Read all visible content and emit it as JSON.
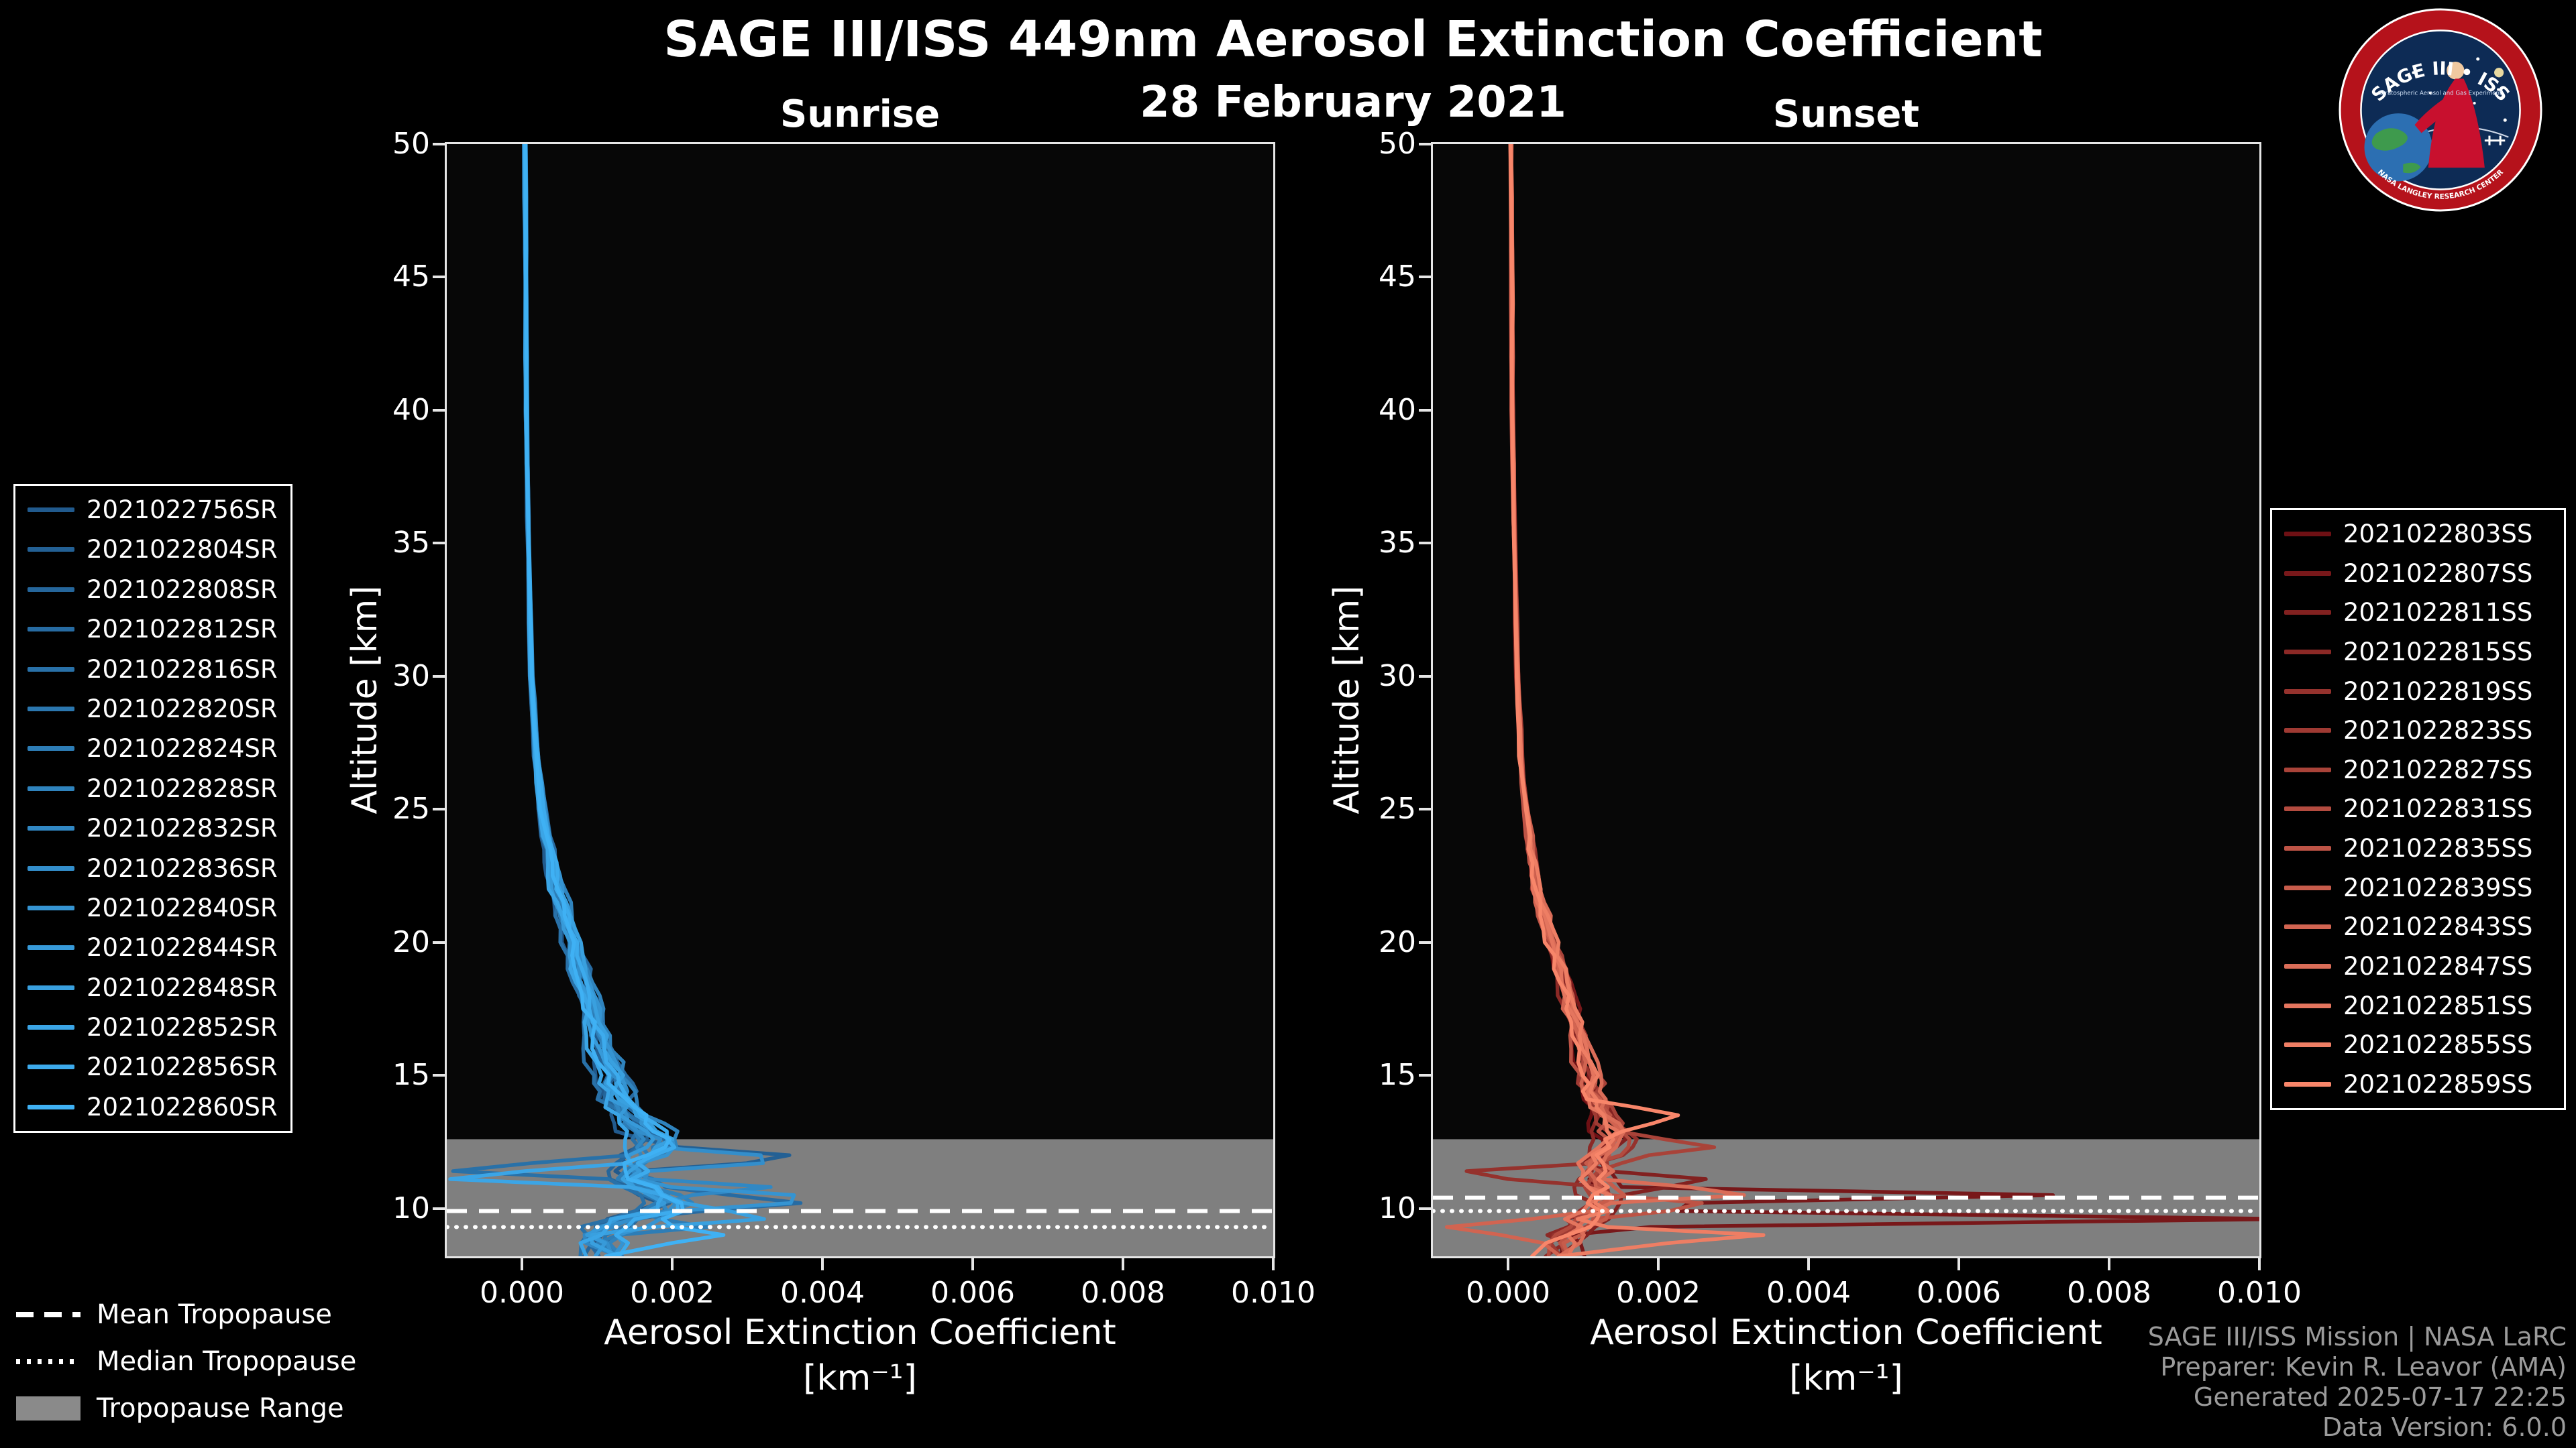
{
  "page": {
    "title": "SAGE III/ISS 449nm Aerosol Extinction Coefficient",
    "date": "28 February 2021",
    "background": "#000000",
    "text_color": "#ffffff"
  },
  "logo": {
    "title": "SAGE III • ISS",
    "subtitle": "Stratospheric Aerosol and Gas Experiment",
    "ring_text": "NASA LANGLEY RESEARCH CENTER",
    "ring_color": "#b5121b",
    "disc_color": "#0d2b55"
  },
  "axes": {
    "ylabel": "Altitude [km]",
    "xlabel_line1": "Aerosol Extinction Coefficient",
    "xlabel_line2": "[km⁻¹]",
    "x_tick_labels": [
      "0.000",
      "0.002",
      "0.004",
      "0.006",
      "0.008",
      "0.010"
    ],
    "x_tick_values": [
      0,
      0.002,
      0.004,
      0.006,
      0.008,
      0.01
    ],
    "y_tick_values": [
      10,
      15,
      20,
      25,
      30,
      35,
      40,
      45,
      50
    ],
    "xlim": [
      -0.001,
      0.01
    ],
    "ylim": [
      8.2,
      50
    ]
  },
  "tropopause_legend": [
    {
      "label": "Mean Tropopause",
      "style": "dashed"
    },
    {
      "label": "Median Tropopause",
      "style": "dotted"
    },
    {
      "label": "Tropopause Range",
      "style": "patch",
      "color": "#8a8a8a"
    }
  ],
  "credits": [
    "SAGE III/ISS Mission | NASA LaRC",
    "Preparer: Kevin R. Leavor (AMA)",
    "Generated 2025-07-17 22:25",
    "Data Version: 6.0.0"
  ],
  "chart_data": [
    {
      "type": "line",
      "panel": "sunrise",
      "title": "Sunrise",
      "xlabel": "Aerosol Extinction Coefficient [km⁻¹]",
      "ylabel": "Altitude [km]",
      "xlim": [
        -0.001,
        0.01
      ],
      "ylim": [
        8.2,
        50
      ],
      "x_ticks": [
        0,
        0.002,
        0.004,
        0.006,
        0.008,
        0.01
      ],
      "y_ticks": [
        10,
        15,
        20,
        25,
        30,
        35,
        40,
        45,
        50
      ],
      "legend_position": "left",
      "color_start": "#215a8d",
      "color_end": "#3fb1f4",
      "tropopause": {
        "mean_km": 9.9,
        "median_km": 9.3,
        "range_km": [
          8.2,
          12.6
        ]
      },
      "base_profile": [
        [
          50,
          4e-05
        ],
        [
          45,
          5e-05
        ],
        [
          40,
          6e-05
        ],
        [
          35,
          9e-05
        ],
        [
          30,
          0.00013
        ],
        [
          27,
          0.0002
        ],
        [
          25,
          0.00028
        ],
        [
          22,
          0.00048
        ],
        [
          20,
          0.0007
        ],
        [
          18,
          0.0009
        ],
        [
          16,
          0.0011
        ],
        [
          15,
          0.00125
        ],
        [
          14,
          0.0014
        ],
        [
          13,
          0.0017
        ],
        [
          12.5,
          0.0019
        ],
        [
          12,
          0.0017
        ],
        [
          11.5,
          0.0015
        ],
        [
          11,
          0.0016
        ],
        [
          10.5,
          0.0019
        ],
        [
          10,
          0.002
        ],
        [
          9.5,
          0.0014
        ],
        [
          9,
          0.001
        ],
        [
          8.2,
          0.0012
        ]
      ],
      "noise": {
        "hi": 2e-05,
        "mid": 0.00018,
        "low": 0.0005
      },
      "series": [
        {
          "name": "2021022756SR",
          "seed": 101,
          "scale": 0.85,
          "spikes": []
        },
        {
          "name": "2021022804SR",
          "seed": 102,
          "scale": 0.95,
          "spikes": [
            [
              11.9,
              0.0022,
              0.3
            ]
          ]
        },
        {
          "name": "2021022808SR",
          "seed": 103,
          "scale": 0.9,
          "spikes": []
        },
        {
          "name": "2021022812SR",
          "seed": 104,
          "scale": 1.05,
          "spikes": [
            [
              10.2,
              0.0014,
              0.3
            ]
          ]
        },
        {
          "name": "2021022816SR",
          "seed": 105,
          "scale": 0.8,
          "spikes": [
            [
              11.5,
              -0.0024,
              0.25
            ]
          ]
        },
        {
          "name": "2021022820SR",
          "seed": 106,
          "scale": 1.0,
          "spikes": []
        },
        {
          "name": "2021022824SR",
          "seed": 107,
          "scale": 0.9,
          "spikes": [
            [
              9.3,
              0.0012,
              0.3
            ]
          ]
        },
        {
          "name": "2021022828SR",
          "seed": 108,
          "scale": 1.1,
          "spikes": []
        },
        {
          "name": "2021022832SR",
          "seed": 109,
          "scale": 0.95,
          "spikes": [
            [
              10.8,
              0.0016,
              0.25
            ]
          ]
        },
        {
          "name": "2021022836SR",
          "seed": 110,
          "scale": 1.0,
          "spikes": [
            [
              11.85,
              0.0024,
              0.25
            ]
          ]
        },
        {
          "name": "2021022840SR",
          "seed": 111,
          "scale": 1.05,
          "spikes": [
            [
              10.35,
              0.0027,
              0.22
            ]
          ]
        },
        {
          "name": "2021022844SR",
          "seed": 112,
          "scale": 0.9,
          "spikes": []
        },
        {
          "name": "2021022848SR",
          "seed": 113,
          "scale": 1.0,
          "spikes": [
            [
              9.6,
              0.0018,
              0.3
            ]
          ]
        },
        {
          "name": "2021022852SR",
          "seed": 114,
          "scale": 0.85,
          "spikes": [
            [
              11.2,
              -0.0026,
              0.22
            ]
          ]
        },
        {
          "name": "2021022856SR",
          "seed": 115,
          "scale": 1.0,
          "spikes": []
        },
        {
          "name": "2021022860SR",
          "seed": 116,
          "scale": 0.95,
          "spikes": [
            [
              9.0,
              0.0014,
              0.35
            ]
          ]
        }
      ]
    },
    {
      "type": "line",
      "panel": "sunset",
      "title": "Sunset",
      "xlabel": "Aerosol Extinction Coefficient [km⁻¹]",
      "ylabel": "Altitude [km]",
      "xlim": [
        -0.001,
        0.01
      ],
      "ylim": [
        8.2,
        50
      ],
      "x_ticks": [
        0,
        0.002,
        0.004,
        0.006,
        0.008,
        0.01
      ],
      "y_ticks": [
        10,
        15,
        20,
        25,
        30,
        35,
        40,
        45,
        50
      ],
      "legend_position": "right",
      "color_start": "#6e1014",
      "color_end": "#f8866a",
      "tropopause": {
        "mean_km": 10.4,
        "median_km": 9.9,
        "range_km": [
          8.2,
          12.6
        ]
      },
      "base_profile": [
        [
          50,
          4e-05
        ],
        [
          45,
          5e-05
        ],
        [
          40,
          6e-05
        ],
        [
          35,
          9e-05
        ],
        [
          30,
          0.00013
        ],
        [
          27,
          0.00018
        ],
        [
          25,
          0.00025
        ],
        [
          22,
          0.0004
        ],
        [
          20,
          0.0006
        ],
        [
          18,
          0.00085
        ],
        [
          16,
          0.001
        ],
        [
          15,
          0.0011
        ],
        [
          14,
          0.0012
        ],
        [
          13,
          0.0014
        ],
        [
          12.5,
          0.0015
        ],
        [
          12,
          0.0013
        ],
        [
          11.5,
          0.0012
        ],
        [
          11,
          0.0012
        ],
        [
          10.5,
          0.0013
        ],
        [
          10,
          0.0012
        ],
        [
          9.5,
          0.001
        ],
        [
          9,
          0.0008
        ],
        [
          8.2,
          0.0007
        ]
      ],
      "noise": {
        "hi": 2e-05,
        "mid": 0.00016,
        "low": 0.00045
      },
      "series": [
        {
          "name": "2021022803SS",
          "seed": 201,
          "scale": 0.9,
          "spikes": []
        },
        {
          "name": "2021022807SS",
          "seed": 202,
          "scale": 1.0,
          "spikes": [
            [
              10.45,
              0.0062,
              0.2
            ],
            [
              9.6,
              0.0092,
              0.2
            ]
          ]
        },
        {
          "name": "2021022811SS",
          "seed": 203,
          "scale": 0.95,
          "spikes": [
            [
              11.0,
              0.0015,
              0.3
            ]
          ]
        },
        {
          "name": "2021022815SS",
          "seed": 204,
          "scale": 0.85,
          "spikes": []
        },
        {
          "name": "2021022819SS",
          "seed": 205,
          "scale": 1.0,
          "spikes": [
            [
              11.3,
              -0.0022,
              0.25
            ]
          ]
        },
        {
          "name": "2021022823SS",
          "seed": 206,
          "scale": 0.9,
          "spikes": []
        },
        {
          "name": "2021022827SS",
          "seed": 207,
          "scale": 1.05,
          "spikes": [
            [
              12.3,
              0.0012,
              0.3
            ]
          ]
        },
        {
          "name": "2021022831SS",
          "seed": 208,
          "scale": 0.95,
          "spikes": []
        },
        {
          "name": "2021022835SS",
          "seed": 209,
          "scale": 0.9,
          "spikes": [
            [
              10.1,
              0.0016,
              0.25
            ]
          ]
        },
        {
          "name": "2021022839SS",
          "seed": 210,
          "scale": 1.0,
          "spikes": []
        },
        {
          "name": "2021022843SS",
          "seed": 211,
          "scale": 0.9,
          "spikes": [
            [
              9.3,
              -0.0015,
              0.3
            ]
          ]
        },
        {
          "name": "2021022847SS",
          "seed": 212,
          "scale": 1.05,
          "spikes": [
            [
              10.6,
              0.0018,
              0.25
            ]
          ]
        },
        {
          "name": "2021022851SS",
          "seed": 213,
          "scale": 0.95,
          "spikes": []
        },
        {
          "name": "2021022855SS",
          "seed": 214,
          "scale": 1.0,
          "spikes": [
            [
              8.95,
              0.0026,
              0.28
            ]
          ]
        },
        {
          "name": "2021022859SS",
          "seed": 215,
          "scale": 0.9,
          "spikes": [
            [
              13.5,
              0.001,
              0.4
            ]
          ]
        }
      ]
    }
  ]
}
